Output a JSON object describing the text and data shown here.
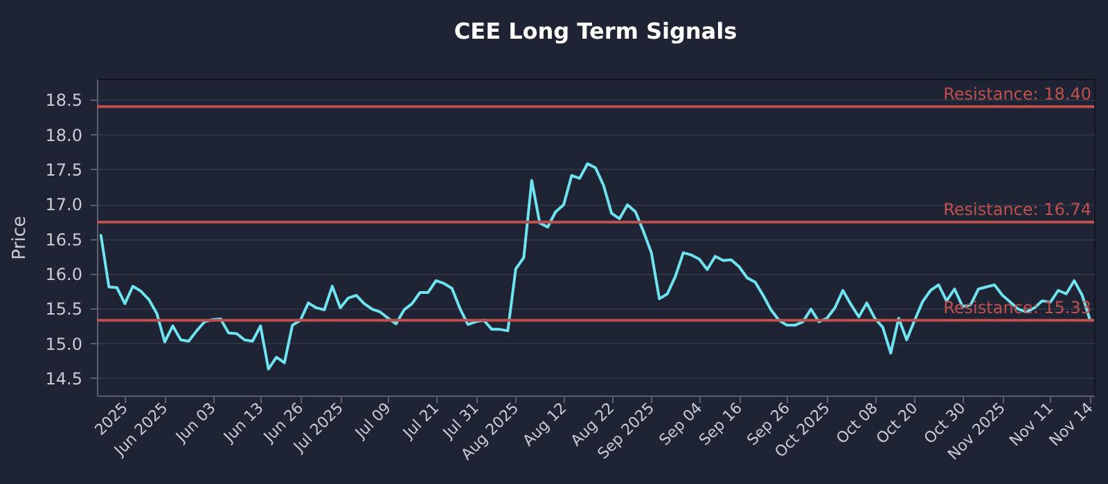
{
  "chart_data": {
    "type": "line",
    "title": "CEE Long Term Signals",
    "ylabel": "Price",
    "categories": [
      null,
      null,
      null,
      "2025",
      null,
      null,
      null,
      null,
      "Jun 2025",
      null,
      null,
      null,
      null,
      null,
      "Jun 03",
      null,
      null,
      null,
      null,
      null,
      "Jun 13",
      null,
      null,
      null,
      null,
      "Jun 26",
      null,
      null,
      null,
      null,
      "Jul 2025",
      null,
      null,
      null,
      null,
      null,
      "Jul 09",
      null,
      null,
      null,
      null,
      null,
      "Jul 21",
      null,
      null,
      null,
      null,
      "Jul 31",
      null,
      null,
      null,
      null,
      "Aug 2025",
      null,
      null,
      null,
      null,
      null,
      "Aug 12",
      null,
      null,
      null,
      null,
      null,
      "Aug 22",
      null,
      null,
      null,
      null,
      "Sep 2025",
      null,
      null,
      null,
      null,
      null,
      "Sep 04",
      null,
      null,
      null,
      null,
      "Sep 16",
      null,
      null,
      null,
      null,
      null,
      "Sep 26",
      null,
      null,
      null,
      null,
      "Oct 2025",
      null,
      null,
      null,
      null,
      null,
      "Oct 08",
      null,
      null,
      null,
      null,
      "Oct 20",
      null,
      null,
      null,
      null,
      null,
      "Oct 30",
      null,
      null,
      null,
      null,
      "Nov 2025",
      null,
      null,
      null,
      null,
      null,
      "Nov 11",
      null,
      null,
      null,
      null,
      "Nov 14"
    ],
    "series": [
      {
        "color": "#6fe3f0",
        "values": [
          16.55,
          15.81,
          15.8,
          15.57,
          15.82,
          15.75,
          15.63,
          15.43,
          15.02,
          15.25,
          15.05,
          15.03,
          15.18,
          15.31,
          15.34,
          15.35,
          15.15,
          15.14,
          15.05,
          15.03,
          15.25,
          14.63,
          14.8,
          14.72,
          15.26,
          15.33,
          15.58,
          15.51,
          15.48,
          15.82,
          15.51,
          15.65,
          15.69,
          15.57,
          15.49,
          15.45,
          15.36,
          15.28,
          15.48,
          15.57,
          15.73,
          15.73,
          15.9,
          15.86,
          15.79,
          15.5,
          15.27,
          15.31,
          15.33,
          15.2,
          15.2,
          15.18,
          16.07,
          16.23,
          17.34,
          16.73,
          16.67,
          16.89,
          16.99,
          17.41,
          17.37,
          17.58,
          17.52,
          17.27,
          16.87,
          16.79,
          16.99,
          16.89,
          16.61,
          16.3,
          15.64,
          15.71,
          15.96,
          16.3,
          16.27,
          16.21,
          16.06,
          16.25,
          16.19,
          16.2,
          16.1,
          15.94,
          15.88,
          15.69,
          15.48,
          15.33,
          15.26,
          15.26,
          15.31,
          15.49,
          15.31,
          15.36,
          15.51,
          15.76,
          15.56,
          15.38,
          15.58,
          15.36,
          15.23,
          14.86,
          15.36,
          15.05,
          15.33,
          15.6,
          15.76,
          15.84,
          15.61,
          15.78,
          15.53,
          15.55,
          15.78,
          15.81,
          15.84,
          15.69,
          15.59,
          15.49,
          15.45,
          15.51,
          15.61,
          15.59,
          15.76,
          15.71,
          15.9,
          15.69,
          15.33
        ]
      }
    ],
    "ylim": [
      14.25,
      18.8
    ],
    "yticks": [
      {
        "value": 14.5,
        "label": "14.5"
      },
      {
        "value": 15,
        "label": "15.0"
      },
      {
        "value": 15.5,
        "label": "15.5"
      },
      {
        "value": 16,
        "label": "16.0"
      },
      {
        "value": 16.5,
        "label": "16.5"
      },
      {
        "value": 17,
        "label": "17.0"
      },
      {
        "value": 17.5,
        "label": "17.5"
      },
      {
        "value": 18,
        "label": "18.0"
      },
      {
        "value": 18.5,
        "label": "18.5"
      }
    ],
    "grid": "y",
    "ref_lines": [
      {
        "axis": "y",
        "value": 18.4,
        "label": "Resistance: 18.40",
        "color": "#c0504d"
      },
      {
        "axis": "y",
        "value": 16.74,
        "label": "Resistance: 16.74",
        "color": "#c0504d"
      },
      {
        "axis": "y",
        "value": 15.33,
        "label": "Resistance: 15.33",
        "color": "#c0504d"
      }
    ]
  }
}
